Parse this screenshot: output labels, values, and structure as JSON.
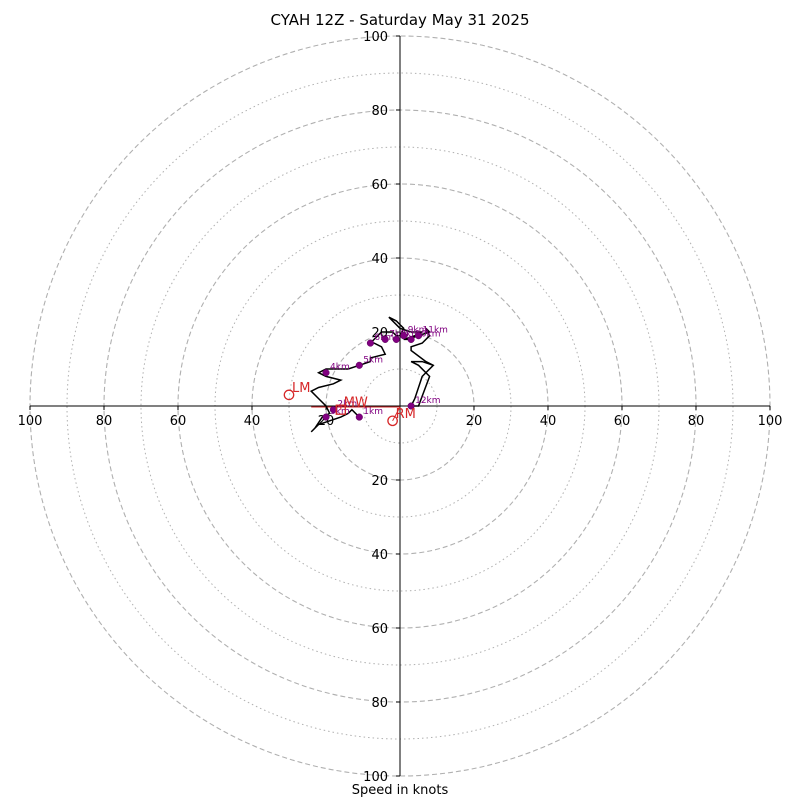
{
  "chart_data": {
    "type": "hodograph",
    "title": "CYAH 12Z - Saturday May 31 2025",
    "xlabel": "Speed in knots",
    "axis_range": [
      -100,
      100
    ],
    "rings_major": [
      20,
      40,
      60,
      80,
      100
    ],
    "rings_minor": [
      10,
      30,
      50,
      70,
      90
    ],
    "tick_labels": [
      "100",
      "80",
      "60",
      "40",
      "20"
    ],
    "colors": {
      "trace": "#000000",
      "height_marker": "#800080",
      "storm_motion": "#d62728",
      "grid": "#b0b0b0"
    },
    "trace": [
      [
        -11,
        -3
      ],
      [
        -13,
        -1
      ],
      [
        -14,
        -2
      ],
      [
        -16,
        -3
      ],
      [
        -19,
        -4
      ],
      [
        -22,
        -5
      ],
      [
        -24,
        -7
      ],
      [
        -23,
        -6
      ],
      [
        -21,
        -3
      ],
      [
        -19,
        -2
      ],
      [
        -20,
        0
      ],
      [
        -22,
        2
      ],
      [
        -24,
        4
      ],
      [
        -22,
        5
      ],
      [
        -18,
        6
      ],
      [
        -16,
        7
      ],
      [
        -20,
        8
      ],
      [
        -22,
        9
      ],
      [
        -20,
        10
      ],
      [
        -14,
        10
      ],
      [
        -11,
        11
      ],
      [
        -8,
        12
      ],
      [
        -8,
        13
      ],
      [
        -4,
        14
      ],
      [
        -4,
        14
      ],
      [
        -5,
        16
      ],
      [
        -7,
        17
      ],
      [
        -8,
        17
      ],
      [
        -7,
        18
      ],
      [
        -6,
        19
      ],
      [
        -5,
        20
      ],
      [
        -4,
        20
      ],
      [
        -2,
        20
      ],
      [
        -1,
        19
      ],
      [
        0,
        19
      ],
      [
        1,
        21
      ],
      [
        0,
        22
      ],
      [
        -1,
        23
      ],
      [
        -3,
        24
      ],
      [
        0,
        21
      ],
      [
        3,
        20
      ],
      [
        6,
        20
      ],
      [
        4,
        19
      ],
      [
        1,
        18
      ],
      [
        2,
        18
      ],
      [
        5,
        19
      ],
      [
        8,
        20
      ],
      [
        7,
        21
      ],
      [
        8,
        19
      ],
      [
        6,
        17
      ],
      [
        3,
        16
      ],
      [
        3,
        15
      ],
      [
        7,
        12
      ],
      [
        9,
        11
      ],
      [
        6,
        8
      ],
      [
        4,
        2
      ],
      [
        3,
        0
      ],
      [
        5,
        0
      ],
      [
        8,
        8
      ],
      [
        5,
        11
      ],
      [
        3,
        12
      ],
      [
        6,
        12
      ],
      [
        9,
        11
      ]
    ],
    "height_markers": [
      {
        "label": "1km",
        "u": -11,
        "v": -3
      },
      {
        "label": "2km",
        "u": -18,
        "v": -1
      },
      {
        "label": "3km",
        "u": -20,
        "v": -3
      },
      {
        "label": "4km",
        "u": -20,
        "v": 9
      },
      {
        "label": "5km",
        "u": -11,
        "v": 11
      },
      {
        "label": "6km",
        "u": -8,
        "v": 17
      },
      {
        "label": "7km",
        "u": -4,
        "v": 18
      },
      {
        "label": "8km",
        "u": -1,
        "v": 18
      },
      {
        "label": "9km",
        "u": 1,
        "v": 19
      },
      {
        "label": "10km",
        "u": 3,
        "v": 18
      },
      {
        "label": "11km",
        "u": 5,
        "v": 19
      },
      {
        "label": "12km",
        "u": 3,
        "v": 0
      }
    ],
    "storm_motion": [
      {
        "label": "LM",
        "u": -30,
        "v": 3
      },
      {
        "label": "MW",
        "u": -16,
        "v": -1
      },
      {
        "label": "RM",
        "u": -2,
        "v": -4
      }
    ]
  }
}
